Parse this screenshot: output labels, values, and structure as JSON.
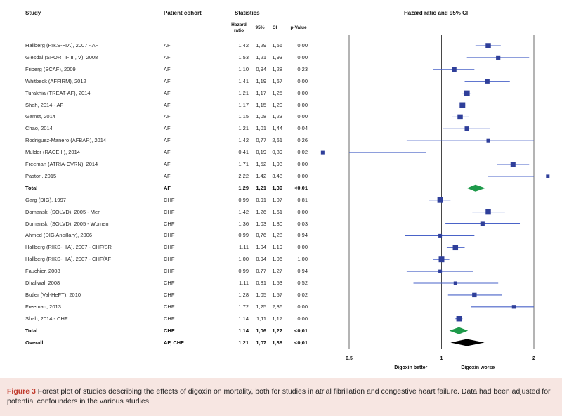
{
  "headers": {
    "study": "Study",
    "cohort": "Patient cohort",
    "statistics": "Statistics",
    "hazard_ratio": "Hazard ratio",
    "ci95": "95%",
    "ci": "CI",
    "pvalue": "p-Value",
    "plot_title": "Hazard ratio and 95% CI"
  },
  "chart_data": {
    "type": "forest",
    "title": "Hazard ratio and 95% CI",
    "xscale": "log",
    "xlim": [
      0.5,
      2
    ],
    "xticks": [
      {
        "value": 0.5,
        "label": "0.5"
      },
      {
        "value": 1,
        "label": "1"
      },
      {
        "value": 2,
        "label": "2"
      }
    ],
    "left_label": "Digoxin better",
    "right_label": "Digoxin worse",
    "rows": [
      {
        "study": "Hallberg (RIKS-HIA), 2007 - AF",
        "cohort": "AF",
        "hr": "1,42",
        "lo": "1,29",
        "hi": "1,56",
        "p": "0,00",
        "v": 1.42,
        "l": 1.29,
        "h": 1.56,
        "kind": "study",
        "size": 1.0
      },
      {
        "study": "Gjesdal (SPORTIF III, V), 2008",
        "cohort": "AF",
        "hr": "1,53",
        "lo": "1,21",
        "hi": "1,93",
        "p": "0,00",
        "v": 1.53,
        "l": 1.21,
        "h": 1.93,
        "kind": "study",
        "size": 0.7
      },
      {
        "study": "Friberg (SCAF), 2009",
        "cohort": "AF",
        "hr": "1,10",
        "lo": "0,94",
        "hi": "1,28",
        "p": "0,23",
        "v": 1.1,
        "l": 0.94,
        "h": 1.28,
        "kind": "study",
        "size": 0.75
      },
      {
        "study": "Whitbeck (AFFIRM), 2012",
        "cohort": "AF",
        "hr": "1,41",
        "lo": "1,19",
        "hi": "1,67",
        "p": "0,00",
        "v": 1.41,
        "l": 1.19,
        "h": 1.67,
        "kind": "study",
        "size": 0.75
      },
      {
        "study": "Turakhia (TREAT-AF), 2014",
        "cohort": "AF",
        "hr": "1,21",
        "lo": "1,17",
        "hi": "1,25",
        "p": "0,00",
        "v": 1.21,
        "l": 1.17,
        "h": 1.25,
        "kind": "study",
        "size": 1.1
      },
      {
        "study": "Shah, 2014 - AF",
        "cohort": "AF",
        "hr": "1,17",
        "lo": "1,15",
        "hi": "1,20",
        "p": "0,00",
        "v": 1.17,
        "l": 1.15,
        "h": 1.2,
        "kind": "study",
        "size": 1.1
      },
      {
        "study": "Gamst, 2014",
        "cohort": "AF",
        "hr": "1,15",
        "lo": "1,08",
        "hi": "1,23",
        "p": "0,00",
        "v": 1.15,
        "l": 1.08,
        "h": 1.23,
        "kind": "study",
        "size": 1.0
      },
      {
        "study": "Chao, 2014",
        "cohort": "AF",
        "hr": "1,21",
        "lo": "1,01",
        "hi": "1,44",
        "p": "0,04",
        "v": 1.21,
        "l": 1.01,
        "h": 1.44,
        "kind": "study",
        "size": 0.75
      },
      {
        "study": "Rodriguez-Manero (AFBAR), 2014",
        "cohort": "AF",
        "hr": "1,42",
        "lo": "0,77",
        "hi": "2,61",
        "p": "0,26",
        "v": 1.42,
        "l": 0.77,
        "h": 2.61,
        "kind": "study",
        "size": 0.45
      },
      {
        "study": "Mulder (RACE II), 2014",
        "cohort": "AF",
        "hr": "0,41",
        "lo": "0,19",
        "hi": "0,89",
        "p": "0,02",
        "v": 0.41,
        "l": 0.19,
        "h": 0.89,
        "kind": "study",
        "size": 0.45
      },
      {
        "study": "Freeman (ATRIA-CVRN), 2014",
        "cohort": "AF",
        "hr": "1,71",
        "lo": "1,52",
        "hi": "1,93",
        "p": "0,00",
        "v": 1.71,
        "l": 1.52,
        "h": 1.93,
        "kind": "study",
        "size": 0.9
      },
      {
        "study": "Pastori, 2015",
        "cohort": "AF",
        "hr": "2,22",
        "lo": "1,42",
        "hi": "3,48",
        "p": "0,00",
        "v": 2.22,
        "l": 1.42,
        "h": 3.48,
        "kind": "study",
        "size": 0.45
      },
      {
        "study": "Total",
        "cohort": "AF",
        "hr": "1,29",
        "lo": "1,21",
        "hi": "1,39",
        "p": "<0,01",
        "v": 1.29,
        "l": 1.21,
        "h": 1.39,
        "kind": "total",
        "size": 1.0
      },
      {
        "study": "Garg (DIG), 1997",
        "cohort": "CHF",
        "hr": "0,99",
        "lo": "0,91",
        "hi": "1,07",
        "p": "0,81",
        "v": 0.99,
        "l": 0.91,
        "h": 1.07,
        "kind": "study",
        "size": 1.1
      },
      {
        "study": "Domanski (SOLVD), 2005 - Men",
        "cohort": "CHF",
        "hr": "1,42",
        "lo": "1,26",
        "hi": "1,61",
        "p": "0,00",
        "v": 1.42,
        "l": 1.26,
        "h": 1.61,
        "kind": "study",
        "size": 1.0
      },
      {
        "study": "Domanski (SOLVD), 2005 - Women",
        "cohort": "CHF",
        "hr": "1,36",
        "lo": "1,03",
        "hi": "1,80",
        "p": "0,03",
        "v": 1.36,
        "l": 1.03,
        "h": 1.8,
        "kind": "study",
        "size": 0.7
      },
      {
        "study": "Ahmed (DIG Ancillary), 2006",
        "cohort": "CHF",
        "hr": "0,99",
        "lo": "0,76",
        "hi": "1,28",
        "p": "0,94",
        "v": 0.99,
        "l": 0.76,
        "h": 1.28,
        "kind": "study",
        "size": 0.45
      },
      {
        "study": "Hallberg (RIKS-HIA), 2007 - CHF/SR",
        "cohort": "CHF",
        "hr": "1,11",
        "lo": "1,04",
        "hi": "1,19",
        "p": "0,00",
        "v": 1.11,
        "l": 1.04,
        "h": 1.19,
        "kind": "study",
        "size": 1.0
      },
      {
        "study": "Hallberg (RIKS-HIA), 2007 - CHF/AF",
        "cohort": "CHF",
        "hr": "1,00",
        "lo": "0,94",
        "hi": "1,06",
        "p": "1,00",
        "v": 1.0,
        "l": 0.94,
        "h": 1.06,
        "kind": "study",
        "size": 1.1
      },
      {
        "study": "Fauchier, 2008",
        "cohort": "CHF",
        "hr": "0,99",
        "lo": "0,77",
        "hi": "1,27",
        "p": "0,94",
        "v": 0.99,
        "l": 0.77,
        "h": 1.27,
        "kind": "study",
        "size": 0.45
      },
      {
        "study": "Dhaliwal, 2008",
        "cohort": "CHF",
        "hr": "1,11",
        "lo": "0,81",
        "hi": "1,53",
        "p": "0,52",
        "v": 1.11,
        "l": 0.81,
        "h": 1.53,
        "kind": "study",
        "size": 0.45
      },
      {
        "study": "Butler (Val-HeFT), 2010",
        "cohort": "CHF",
        "hr": "1,28",
        "lo": "1,05",
        "hi": "1,57",
        "p": "0,02",
        "v": 1.28,
        "l": 1.05,
        "h": 1.57,
        "kind": "study",
        "size": 0.75
      },
      {
        "study": "Freeman, 2013",
        "cohort": "CHF",
        "hr": "1,72",
        "lo": "1,25",
        "hi": "2,36",
        "p": "0,00",
        "v": 1.72,
        "l": 1.25,
        "h": 2.36,
        "kind": "study",
        "size": 0.5
      },
      {
        "study": "Shah, 2014 - CHF",
        "cohort": "CHF",
        "hr": "1,14",
        "lo": "1,11",
        "hi": "1,17",
        "p": "0,00",
        "v": 1.14,
        "l": 1.11,
        "h": 1.17,
        "kind": "study",
        "size": 1.0
      },
      {
        "study": "Total",
        "cohort": "CHF",
        "hr": "1,14",
        "lo": "1,06",
        "hi": "1,22",
        "p": "<0,01",
        "v": 1.14,
        "l": 1.06,
        "h": 1.22,
        "kind": "total",
        "size": 1.0
      },
      {
        "study": "Overall",
        "cohort": "AF, CHF",
        "hr": "1,21",
        "lo": "1,07",
        "hi": "1,38",
        "p": "<0,01",
        "v": 1.21,
        "l": 1.07,
        "h": 1.38,
        "kind": "overall",
        "size": 1.0
      }
    ]
  },
  "colors": {
    "marker": "#2f3f9a",
    "line": "#4a63c8",
    "total_diamond": "#1e9a4a",
    "overall_diamond": "#000000",
    "caption_bg": "#f7e6e2",
    "figure_label": "#c0392b"
  },
  "caption": {
    "label": "Figure 3",
    "text": " Forest plot of studies describing the effects of digoxin on mortality, both for studies in atrial fibrillation and congestive heart failure. Data had been adjusted for potential confounders in the various studies."
  }
}
